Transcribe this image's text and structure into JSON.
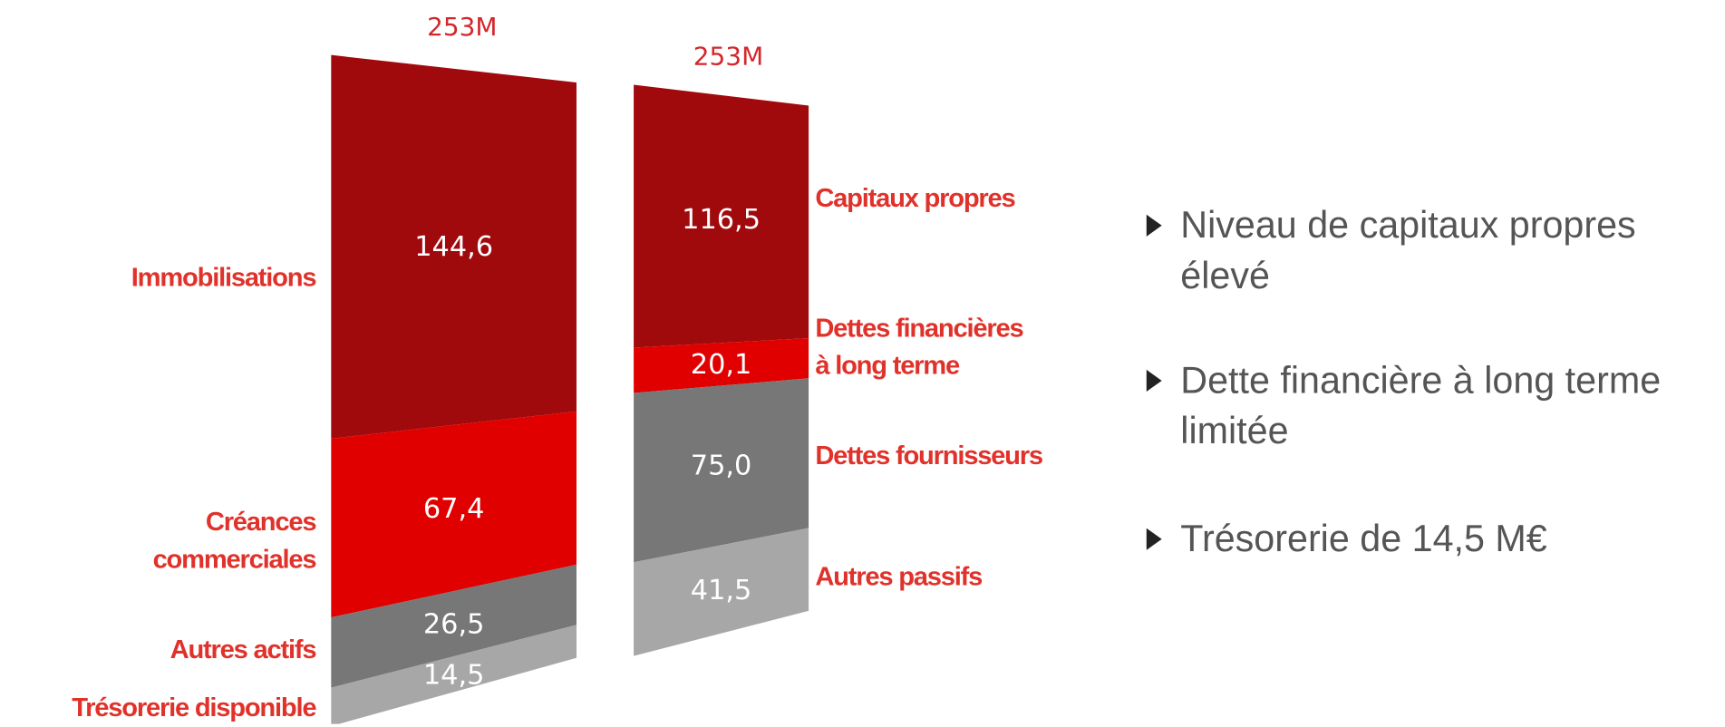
{
  "chart_data": {
    "type": "stacked_bar",
    "columns": [
      {
        "total": 253,
        "total_label": "253M",
        "segments": [
          {
            "name": "Immobilisations",
            "value": 144.6,
            "value_label": "144,6",
            "color": "#a10a0d"
          },
          {
            "name": "Créances\ncommerciales",
            "value": 67.4,
            "value_label": "67,4",
            "color": "#e00000"
          },
          {
            "name": "Autres actifs",
            "value": 26.5,
            "value_label": "26,5",
            "color": "#777777"
          },
          {
            "name": "Trésorerie disponible",
            "value": 14.5,
            "value_label": "14,5",
            "color": "#a7a7a7"
          }
        ]
      },
      {
        "total": 253,
        "total_label": "253M",
        "segments": [
          {
            "name": "Capitaux propres",
            "value": 116.5,
            "value_label": "116,5",
            "color": "#a10a0d"
          },
          {
            "name": "Dettes financières\nà long terme",
            "value": 20.1,
            "value_label": "20,1",
            "color": "#e00000"
          },
          {
            "name": "Dettes fournisseurs",
            "value": 75.0,
            "value_label": "75,0",
            "color": "#777777"
          },
          {
            "name": "Autres passifs",
            "value": 41.5,
            "value_label": "41,5",
            "color": "#a7a7a7"
          }
        ]
      }
    ]
  },
  "bullets": [
    "Niveau de capitaux propres élevé",
    "Dette financière à long terme limitée",
    "Trésorerie de 14,5 M€"
  ]
}
